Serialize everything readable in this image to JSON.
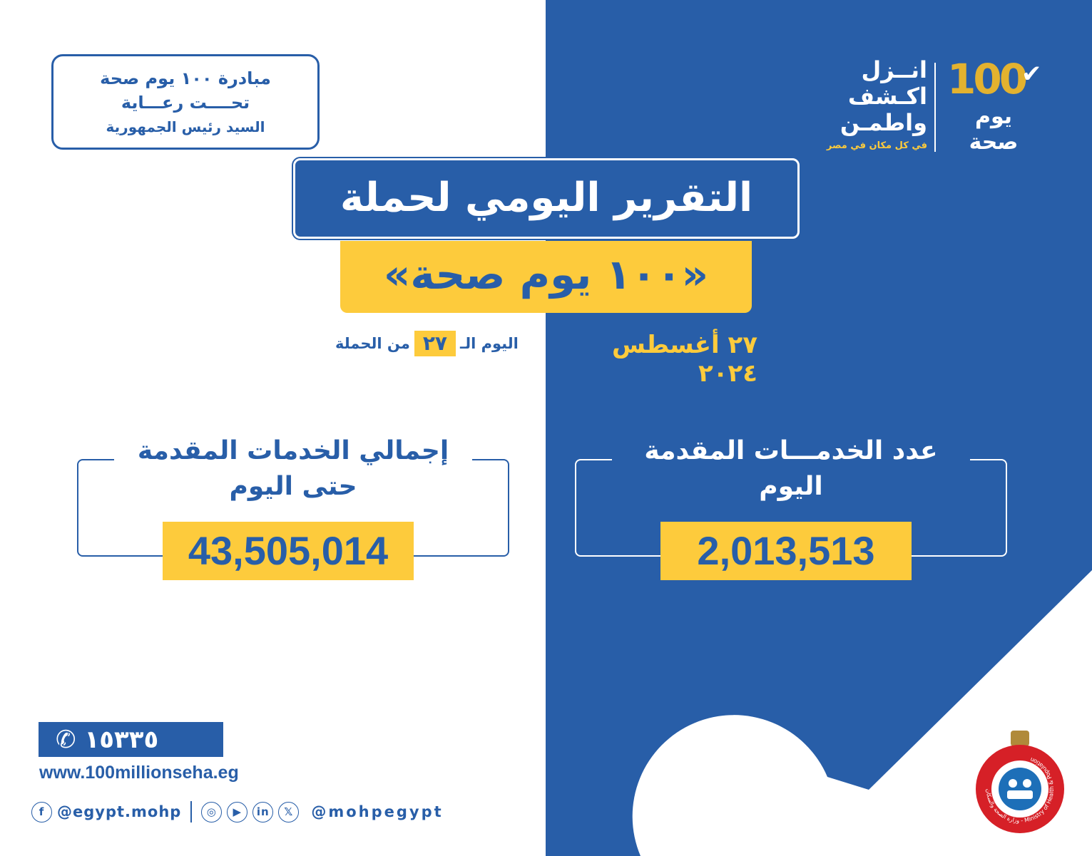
{
  "colors": {
    "blue": "#285ea8",
    "yellow": "#fdcb3c",
    "gold": "#e3b22f",
    "white": "#ffffff"
  },
  "patron": {
    "line1": "مبادرة ١٠٠ يوم صحة",
    "line2": "تحــــت رعـــاية",
    "line3": "السيد رئيس الجمهورية"
  },
  "logo": {
    "hundred": "100",
    "yawm": "يوم",
    "seha": "صحة",
    "slogan1": "انــزل",
    "slogan2": "اكـشف",
    "slogan3": "واطمـن",
    "sub": "في كل مكان في مصر"
  },
  "title": "التقرير اليومي لحملة",
  "subtitle": "«١٠٠ يوم صحة»",
  "day": {
    "prefix": "اليوم الـ",
    "number": "٢٧",
    "suffix": "من الحملة"
  },
  "date": "٢٧ أغسطس ٢٠٢٤",
  "total": {
    "label1": "إجمالي الخدمات المقدمة",
    "label2": "حتى اليوم",
    "value": "43,505,014"
  },
  "today": {
    "label1": "عدد الخدمـــات المقدمة",
    "label2": "اليوم",
    "value": "2,013,513"
  },
  "footer": {
    "hotline": "١٥٣٣٥",
    "website": "www.100millionseha.eg",
    "facebook": "@egypt.mohp",
    "handle": "@mohpegypt"
  },
  "ministry_logo_text": "وزارة الصحة والسكان - Ministry of Health & Population"
}
